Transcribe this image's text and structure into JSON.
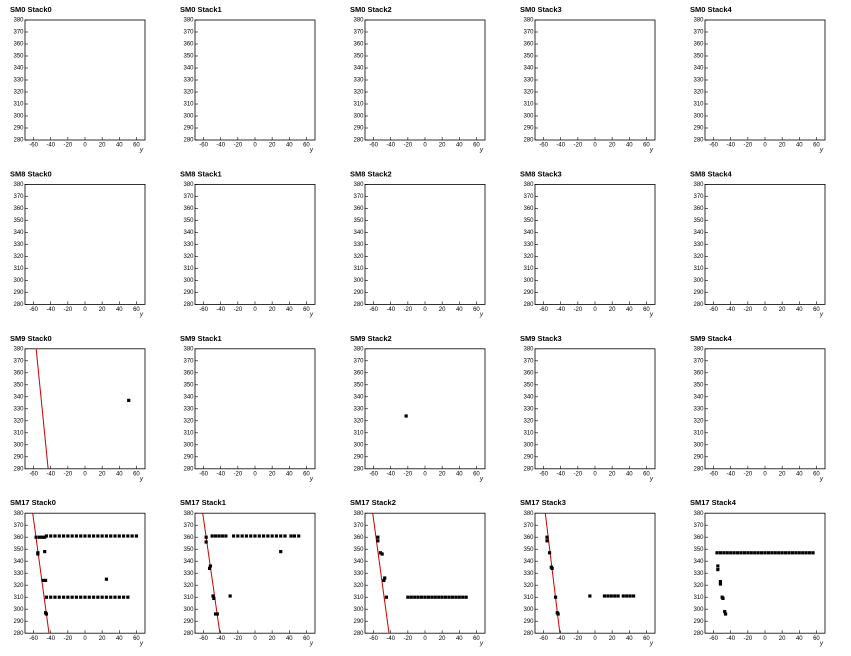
{
  "chart_data": [
    {
      "type": "scatter",
      "title": "SM0 Stack0",
      "xlabel": "y",
      "xlim": [
        -70,
        70
      ],
      "ylim": [
        280,
        380
      ],
      "xticks": [
        -60,
        -40,
        -20,
        0,
        20,
        40,
        60
      ],
      "yticks": [
        280,
        290,
        300,
        310,
        320,
        330,
        340,
        350,
        360,
        370,
        380
      ]
    },
    {
      "type": "scatter",
      "title": "SM0 Stack1",
      "xlabel": "y",
      "xlim": [
        -70,
        70
      ],
      "ylim": [
        280,
        380
      ],
      "xticks": [
        -60,
        -40,
        -20,
        0,
        20,
        40,
        60
      ],
      "yticks": [
        280,
        290,
        300,
        310,
        320,
        330,
        340,
        350,
        360,
        370,
        380
      ]
    },
    {
      "type": "scatter",
      "title": "SM0 Stack2",
      "xlabel": "y",
      "xlim": [
        -70,
        70
      ],
      "ylim": [
        280,
        380
      ],
      "xticks": [
        -60,
        -40,
        -20,
        0,
        20,
        40,
        60
      ],
      "yticks": [
        280,
        290,
        300,
        310,
        320,
        330,
        340,
        350,
        360,
        370,
        380
      ]
    },
    {
      "type": "scatter",
      "title": "SM0 Stack3",
      "xlabel": "y",
      "xlim": [
        -70,
        70
      ],
      "ylim": [
        280,
        380
      ],
      "xticks": [
        -60,
        -40,
        -20,
        0,
        20,
        40,
        60
      ],
      "yticks": [
        280,
        290,
        300,
        310,
        320,
        330,
        340,
        350,
        360,
        370,
        380
      ]
    },
    {
      "type": "scatter",
      "title": "SM0 Stack4",
      "xlabel": "y",
      "xlim": [
        -70,
        70
      ],
      "ylim": [
        280,
        380
      ],
      "xticks": [
        -60,
        -40,
        -20,
        0,
        20,
        40,
        60
      ],
      "yticks": [
        280,
        290,
        300,
        310,
        320,
        330,
        340,
        350,
        360,
        370,
        380
      ]
    },
    {
      "type": "scatter",
      "title": "SM8 Stack0",
      "xlabel": "y",
      "xlim": [
        -70,
        70
      ],
      "ylim": [
        280,
        380
      ],
      "xticks": [
        -60,
        -40,
        -20,
        0,
        20,
        40,
        60
      ],
      "yticks": [
        280,
        290,
        300,
        310,
        320,
        330,
        340,
        350,
        360,
        370,
        380
      ]
    },
    {
      "type": "scatter",
      "title": "SM8 Stack1",
      "xlabel": "y",
      "xlim": [
        -70,
        70
      ],
      "ylim": [
        280,
        380
      ],
      "xticks": [
        -60,
        -40,
        -20,
        0,
        20,
        40,
        60
      ],
      "yticks": [
        280,
        290,
        300,
        310,
        320,
        330,
        340,
        350,
        360,
        370,
        380
      ]
    },
    {
      "type": "scatter",
      "title": "SM8 Stack2",
      "xlabel": "y",
      "xlim": [
        -70,
        70
      ],
      "ylim": [
        280,
        380
      ],
      "xticks": [
        -60,
        -40,
        -20,
        0,
        20,
        40,
        60
      ],
      "yticks": [
        280,
        290,
        300,
        310,
        320,
        330,
        340,
        350,
        360,
        370,
        380
      ]
    },
    {
      "type": "scatter",
      "title": "SM8 Stack3",
      "xlabel": "y",
      "xlim": [
        -70,
        70
      ],
      "ylim": [
        280,
        380
      ],
      "xticks": [
        -60,
        -40,
        -20,
        0,
        20,
        40,
        60
      ],
      "yticks": [
        280,
        290,
        300,
        310,
        320,
        330,
        340,
        350,
        360,
        370,
        380
      ]
    },
    {
      "type": "scatter",
      "title": "SM8 Stack4",
      "xlabel": "y",
      "xlim": [
        -70,
        70
      ],
      "ylim": [
        280,
        380
      ],
      "xticks": [
        -60,
        -40,
        -20,
        0,
        20,
        40,
        60
      ],
      "yticks": [
        280,
        290,
        300,
        310,
        320,
        330,
        340,
        350,
        360,
        370,
        380
      ]
    },
    {
      "type": "scatter",
      "title": "SM9 Stack0",
      "xlabel": "y",
      "xlim": [
        -70,
        70
      ],
      "ylim": [
        280,
        380
      ],
      "xticks": [
        -60,
        -40,
        -20,
        0,
        20,
        40,
        60
      ],
      "yticks": [
        280,
        290,
        300,
        310,
        320,
        330,
        340,
        350,
        360,
        370,
        380
      ],
      "points": {
        "color": "#000000",
        "x": [
          51
        ],
        "y": [
          337
        ]
      },
      "fit": {
        "color": "#cc0000",
        "x": [
          -57,
          -43
        ],
        "y": [
          380,
          280
        ]
      }
    },
    {
      "type": "scatter",
      "title": "SM9 Stack1",
      "xlabel": "y",
      "xlim": [
        -70,
        70
      ],
      "ylim": [
        280,
        380
      ],
      "xticks": [
        -60,
        -40,
        -20,
        0,
        20,
        40,
        60
      ],
      "yticks": [
        280,
        290,
        300,
        310,
        320,
        330,
        340,
        350,
        360,
        370,
        380
      ]
    },
    {
      "type": "scatter",
      "title": "SM9 Stack2",
      "xlabel": "y",
      "xlim": [
        -70,
        70
      ],
      "ylim": [
        280,
        380
      ],
      "xticks": [
        -60,
        -40,
        -20,
        0,
        20,
        40,
        60
      ],
      "yticks": [
        280,
        290,
        300,
        310,
        320,
        330,
        340,
        350,
        360,
        370,
        380
      ],
      "points": {
        "color": "#000000",
        "x": [
          -22
        ],
        "y": [
          324
        ]
      }
    },
    {
      "type": "scatter",
      "title": "SM9 Stack3",
      "xlabel": "y",
      "xlim": [
        -70,
        70
      ],
      "ylim": [
        280,
        380
      ],
      "xticks": [
        -60,
        -40,
        -20,
        0,
        20,
        40,
        60
      ],
      "yticks": [
        280,
        290,
        300,
        310,
        320,
        330,
        340,
        350,
        360,
        370,
        380
      ]
    },
    {
      "type": "scatter",
      "title": "SM9 Stack4",
      "xlabel": "y",
      "xlim": [
        -70,
        70
      ],
      "ylim": [
        280,
        380
      ],
      "xticks": [
        -60,
        -40,
        -20,
        0,
        20,
        40,
        60
      ],
      "yticks": [
        280,
        290,
        300,
        310,
        320,
        330,
        340,
        350,
        360,
        370,
        380
      ]
    },
    {
      "type": "scatter",
      "title": "SM17 Stack0",
      "xlabel": "y",
      "xlim": [
        -70,
        70
      ],
      "ylim": [
        280,
        380
      ],
      "xticks": [
        -60,
        -40,
        -20,
        0,
        20,
        40,
        60
      ],
      "yticks": [
        280,
        290,
        300,
        310,
        320,
        330,
        340,
        350,
        360,
        370,
        380
      ],
      "points": {
        "color": "#000000",
        "x": [
          -57,
          -53,
          -50,
          -47,
          -45,
          -40,
          -35,
          -30,
          -25,
          -20,
          -15,
          -10,
          -5,
          0,
          5,
          10,
          15,
          20,
          25,
          30,
          35,
          40,
          45,
          50,
          55,
          60,
          -55,
          -55,
          -49,
          -46,
          -47,
          -45,
          -46,
          25,
          -45,
          -40,
          -35,
          -30,
          -25,
          -20,
          -15,
          -10,
          -5,
          0,
          5,
          10,
          15,
          20,
          25,
          30,
          35,
          40,
          45,
          50
        ],
        "y": [
          360,
          360,
          360,
          360,
          361,
          361,
          361,
          361,
          361,
          361,
          361,
          361,
          361,
          361,
          361,
          361,
          361,
          361,
          361,
          361,
          361,
          361,
          361,
          361,
          361,
          361,
          346,
          347,
          324,
          324,
          348,
          296,
          297,
          325,
          310,
          310,
          310,
          310,
          310,
          310,
          310,
          310,
          310,
          310,
          310,
          310,
          310,
          310,
          310,
          310,
          310,
          310,
          310,
          310
        ]
      },
      "fit": {
        "color": "#cc0000",
        "x": [
          -61,
          -42
        ],
        "y": [
          380,
          280
        ]
      }
    },
    {
      "type": "scatter",
      "title": "SM17 Stack1",
      "xlabel": "y",
      "xlim": [
        -70,
        70
      ],
      "ylim": [
        280,
        380
      ],
      "xticks": [
        -60,
        -40,
        -20,
        0,
        20,
        40,
        60
      ],
      "yticks": [
        280,
        290,
        300,
        310,
        320,
        330,
        340,
        350,
        360,
        370,
        380
      ],
      "points": {
        "color": "#000000",
        "x": [
          -50,
          -46,
          -42,
          -38,
          -34,
          -25,
          -20,
          -15,
          -10,
          -5,
          0,
          5,
          10,
          15,
          20,
          25,
          30,
          35,
          42,
          46,
          51,
          -57,
          -57,
          -53,
          -52,
          -49,
          -48,
          -46,
          -44,
          -29,
          30
        ],
        "y": [
          361,
          361,
          361,
          361,
          361,
          361,
          361,
          361,
          361,
          361,
          361,
          361,
          361,
          361,
          361,
          361,
          361,
          361,
          361,
          361,
          361,
          360,
          356,
          334,
          336,
          311,
          309,
          296,
          296,
          311,
          348
        ]
      },
      "fit": {
        "color": "#cc0000",
        "x": [
          -61,
          -41
        ],
        "y": [
          380,
          280
        ]
      }
    },
    {
      "type": "scatter",
      "title": "SM17 Stack2",
      "xlabel": "y",
      "xlim": [
        -70,
        70
      ],
      "ylim": [
        280,
        380
      ],
      "xticks": [
        -60,
        -40,
        -20,
        0,
        20,
        40,
        60
      ],
      "yticks": [
        280,
        290,
        300,
        310,
        320,
        330,
        340,
        350,
        360,
        370,
        380
      ],
      "points": {
        "color": "#000000",
        "x": [
          -55,
          -55,
          -52,
          -50,
          -48,
          -47,
          -45,
          -20,
          -16,
          -12,
          -8,
          -4,
          0,
          4,
          8,
          12,
          16,
          20,
          24,
          28,
          32,
          36,
          40,
          44,
          48
        ],
        "y": [
          360,
          357,
          347,
          346,
          324,
          326,
          310,
          310,
          310,
          310,
          310,
          310,
          310,
          310,
          310,
          310,
          310,
          310,
          310,
          310,
          310,
          310,
          310,
          310,
          310
        ]
      },
      "fit": {
        "color": "#cc0000",
        "x": [
          -61,
          -42
        ],
        "y": [
          380,
          280
        ]
      }
    },
    {
      "type": "scatter",
      "title": "SM17 Stack3",
      "xlabel": "y",
      "xlim": [
        -70,
        70
      ],
      "ylim": [
        280,
        380
      ],
      "xticks": [
        -60,
        -40,
        -20,
        0,
        20,
        40,
        60
      ],
      "yticks": [
        280,
        290,
        300,
        310,
        320,
        330,
        340,
        350,
        360,
        370,
        380
      ],
      "points": {
        "color": "#000000",
        "x": [
          -56,
          -56,
          -53,
          -51,
          -50,
          -46,
          -44,
          -43,
          -6,
          11,
          15,
          19,
          23,
          27,
          33,
          37,
          41,
          45
        ],
        "y": [
          360,
          357,
          347,
          335,
          334,
          310,
          297,
          296,
          311,
          311,
          311,
          311,
          311,
          311,
          311,
          311,
          311,
          311
        ]
      },
      "fit": {
        "color": "#cc0000",
        "x": [
          -58,
          -41
        ],
        "y": [
          380,
          280
        ]
      }
    },
    {
      "type": "scatter",
      "title": "SM17 Stack4",
      "xlabel": "y",
      "xlim": [
        -70,
        70
      ],
      "ylim": [
        280,
        380
      ],
      "xticks": [
        -60,
        -40,
        -20,
        0,
        20,
        40,
        60
      ],
      "yticks": [
        280,
        290,
        300,
        310,
        320,
        330,
        340,
        350,
        360,
        370,
        380
      ],
      "points": {
        "color": "#000000",
        "x": [
          -56,
          -52,
          -48,
          -44,
          -40,
          -36,
          -32,
          -28,
          -24,
          -20,
          -16,
          -12,
          -8,
          -4,
          0,
          4,
          8,
          12,
          16,
          20,
          24,
          28,
          32,
          36,
          40,
          44,
          48,
          52,
          56,
          -55,
          -55,
          -52,
          -52,
          -50,
          -49,
          -47,
          -46
        ],
        "y": [
          347,
          347,
          347,
          347,
          347,
          347,
          347,
          347,
          347,
          347,
          347,
          347,
          347,
          347,
          347,
          347,
          347,
          347,
          347,
          347,
          347,
          347,
          347,
          347,
          347,
          347,
          347,
          347,
          347,
          336,
          333,
          323,
          321,
          310,
          309,
          298,
          296
        ]
      }
    }
  ]
}
